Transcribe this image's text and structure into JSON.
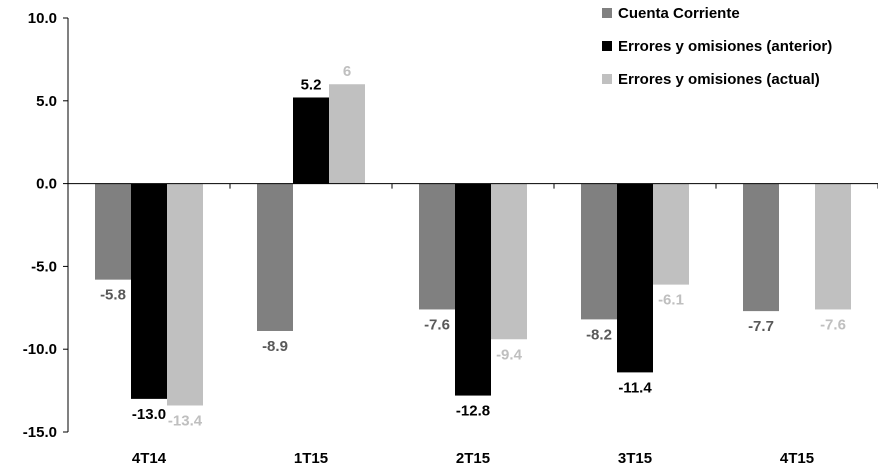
{
  "chart_data": {
    "type": "bar",
    "categories": [
      "4T14",
      "1T15",
      "2T15",
      "3T15",
      "4T15"
    ],
    "series": [
      {
        "name": "Cuenta Corriente",
        "color": "#808080",
        "label_color": "#595959",
        "values": [
          -5.8,
          -8.9,
          -7.6,
          -8.2,
          -7.7
        ],
        "labels": [
          "-5.8",
          "-8.9",
          "-7.6",
          "-8.2",
          "-7.7"
        ]
      },
      {
        "name": "Errores y omisiones (anterior)",
        "color": "#000000",
        "label_color": "#000000",
        "values": [
          -13.0,
          5.2,
          -12.8,
          -11.4,
          null
        ],
        "labels": [
          "-13.0",
          "5.2",
          "-12.8",
          "-11.4",
          ""
        ]
      },
      {
        "name": "Errores y omisiones (actual)",
        "color": "#c0c0c0",
        "label_color": "#bfbfbf",
        "values": [
          -13.4,
          6,
          -9.4,
          -6.1,
          -7.6
        ],
        "labels": [
          "-13.4",
          "6",
          "-9.4",
          "-6.1",
          "-7.6"
        ]
      }
    ],
    "y_ticks": [
      "10.0",
      "5.0",
      "0.0",
      "-5.0",
      "-10.0",
      "-15.0"
    ],
    "ylim": [
      -15,
      10
    ],
    "legend_position": "top-right",
    "grid": false
  }
}
